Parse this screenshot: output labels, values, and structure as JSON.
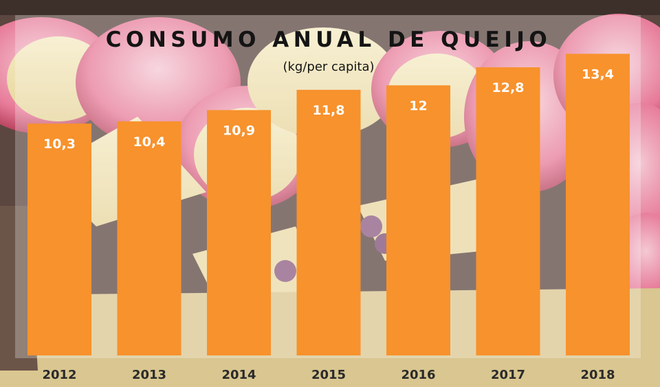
{
  "chart_data": {
    "type": "bar",
    "title": "CONSUMO ANUAL DE QUEIJO",
    "subtitle": "(kg/per capita)",
    "categories": [
      "2012",
      "2013",
      "2014",
      "2015",
      "2016",
      "2017",
      "2018"
    ],
    "values": [
      10.3,
      10.4,
      10.9,
      11.8,
      12,
      12.8,
      13.4
    ],
    "value_labels": [
      "10,3",
      "10,4",
      "10,9",
      "11,8",
      "12",
      "12,8",
      "13,4"
    ],
    "ylim": [
      0,
      13.9
    ],
    "grid": false,
    "legend": "none",
    "bar_color": "#f7922d"
  }
}
